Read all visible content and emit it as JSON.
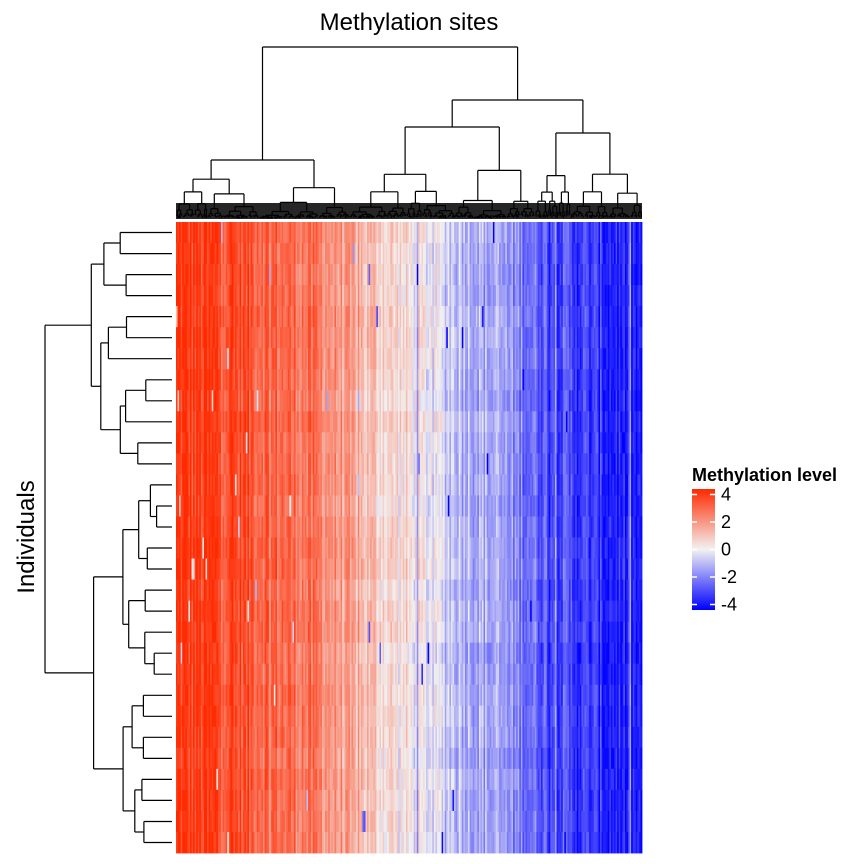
{
  "chart_data": {
    "type": "heatmap",
    "title": "Methylation sites",
    "xlabel": "",
    "ylabel": "Individuals",
    "row_dendrogram": true,
    "column_dendrogram": true,
    "rows": 30,
    "columns": 300,
    "column_profile": {
      "description": "approximate mean methylation level across columns, left to right (ordered by clustering)",
      "positions": [
        0.0,
        0.1,
        0.2,
        0.3,
        0.4,
        0.5,
        0.6,
        0.7,
        0.8,
        0.9,
        1.0
      ],
      "values": [
        4.0,
        3.8,
        3.2,
        2.6,
        1.2,
        0.2,
        -0.8,
        -1.6,
        -2.8,
        -3.5,
        -4.0
      ]
    },
    "color_scale": {
      "low": "#0000FF",
      "mid": "#F2F2F2",
      "high": "#FF2A00",
      "range": [
        -4.4,
        4.4
      ]
    },
    "legend": {
      "title": "Methylation level",
      "ticks": [
        "4",
        "2",
        "0",
        "-2",
        "-4"
      ],
      "tick_values": [
        4,
        2,
        0,
        -2,
        -4
      ],
      "position": "right"
    }
  }
}
